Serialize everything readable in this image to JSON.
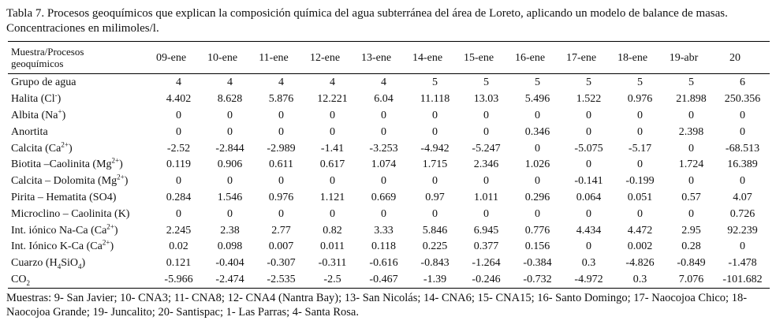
{
  "caption": {
    "line1": "Tabla 7. Procesos geoquímicos que explican la composición química del agua subterránea del área de Loreto, aplicando un modelo de balance de masas.",
    "line2": "Concentraciones en milimoles/l."
  },
  "header": {
    "row_label_line1": "Muestra/Procesos",
    "row_label_line2": "geoquímicos",
    "columns": [
      "09-ene",
      "10-ene",
      "11-ene",
      "12-ene",
      "13-ene",
      "14-ene",
      "15-ene",
      "16-ene",
      "17-ene",
      "18-ene",
      "19-abr",
      "20"
    ]
  },
  "rows": [
    {
      "label": "Grupo de agua",
      "values": [
        "4",
        "4",
        "4",
        "4",
        "4",
        "5",
        "5",
        "5",
        "5",
        "5",
        "5",
        "6"
      ]
    },
    {
      "label_base": "Halita (Cl",
      "label_sup": "-",
      "label_tail": ")",
      "values": [
        "4.402",
        "8.628",
        "5.876",
        "12.221",
        "6.04",
        "11.118",
        "13.03",
        "5.496",
        "1.522",
        "0.976",
        "21.898",
        "250.356"
      ]
    },
    {
      "label_base": "Albita (Na",
      "label_sup": "+",
      "label_tail": ")",
      "values": [
        "0",
        "0",
        "0",
        "0",
        "0",
        "0",
        "0",
        "0",
        "0",
        "0",
        "0",
        "0"
      ]
    },
    {
      "label": "Anortita",
      "values": [
        "0",
        "0",
        "0",
        "0",
        "0",
        "0",
        "0",
        "0.346",
        "0",
        "0",
        "2.398",
        "0"
      ]
    },
    {
      "label_base": "Calcita (Ca",
      "label_sup": "2+",
      "label_tail": ")",
      "values": [
        "-2.52",
        "-2.844",
        "-2.989",
        "-1.41",
        "-3.253",
        "-4.942",
        "-5.247",
        "0",
        "-5.075",
        "-5.17",
        "0",
        "-68.513"
      ]
    },
    {
      "label_base": "Biotita –Caolinita (Mg",
      "label_sup": "2+",
      "label_tail": ")",
      "values": [
        "0.119",
        "0.906",
        "0.611",
        "0.617",
        "1.074",
        "1.715",
        "2.346",
        "1.026",
        "0",
        "0",
        "1.724",
        "16.389"
      ]
    },
    {
      "label_base": "Calcita – Dolomita (Mg",
      "label_sup": "2+",
      "label_tail": ")",
      "values": [
        "0",
        "0",
        "0",
        "0",
        "0",
        "0",
        "0",
        "0",
        "-0.141",
        "-0.199",
        "0",
        "0"
      ]
    },
    {
      "label": "Pirita – Hematita (SO4)",
      "values": [
        "0.284",
        "1.546",
        "0.976",
        "1.121",
        "0.669",
        "0.97",
        "1.011",
        "0.296",
        "0.064",
        "0.051",
        "0.57",
        "4.07"
      ]
    },
    {
      "label": "Microclino – Caolinita (K)",
      "values": [
        "0",
        "0",
        "0",
        "0",
        "0",
        "0",
        "0",
        "0",
        "0",
        "0",
        "0",
        "0.726"
      ]
    },
    {
      "label_base": "Int. iónico Na-Ca (Ca",
      "label_sup": "2+",
      "label_tail": ")",
      "values": [
        "2.245",
        "2.38",
        "2.77",
        "0.82",
        "3.33",
        "5.846",
        "6.945",
        "0.776",
        "4.434",
        "4.472",
        "2.95",
        "92.239"
      ]
    },
    {
      "label_base": "Int. Iónico K-Ca (Ca",
      "label_sup": "2+",
      "label_tail": ")",
      "values": [
        "0.02",
        "0.098",
        "0.007",
        "0.011",
        "0.118",
        "0.225",
        "0.377",
        "0.156",
        "0",
        "0.002",
        "0.28",
        "0"
      ]
    },
    {
      "label_base": "Cuarzo (H",
      "label_sub1": "4",
      "label_mid": "SiO",
      "label_sub2": "4",
      "label_tail": ")",
      "values": [
        "0.121",
        "-0.404",
        "-0.307",
        "-0.311",
        "-0.616",
        "-0.843",
        "-1.264",
        "-0.384",
        "0.3",
        "-4.826",
        "-0.849",
        "-1.478"
      ]
    },
    {
      "label_base": "CO",
      "label_sub1": "2",
      "values": [
        "-5.966",
        "-2.474",
        "-2.535",
        "-2.5",
        "-0.467",
        "-1.39",
        "-0.246",
        "-0.732",
        "-4.972",
        "0.3",
        "7.076",
        "-101.682"
      ]
    }
  ],
  "notes": "Muestras: 9- San Javier; 10- CNA3; 11- CNA8; 12- CNA4 (Nantra Bay); 13- San Nicolás; 14- CNA6; 15- CNA15; 16- Santo Domingo; 17- Naocojoa Chico; 18- Naocojoa Grande; 19-  Juncalito; 20- Santispac; 1- Las Parras; 4- Santa Rosa."
}
